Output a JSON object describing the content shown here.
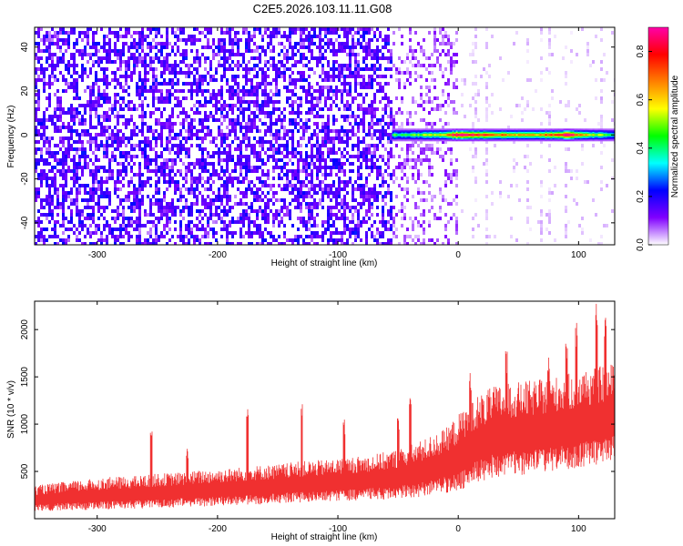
{
  "chart_data": [
    {
      "type": "heatmap",
      "title": "C2E5.2026.103.11.11.G08",
      "xlabel": "Height of straight line (km)",
      "ylabel": "Frequency (Hz)",
      "xlim": [
        -352,
        130
      ],
      "ylim": [
        -50,
        49
      ],
      "x_ticks": [
        -300,
        -200,
        -100,
        0,
        100
      ],
      "x_tick_labels": [
        "-300",
        "-200",
        "-100",
        "0",
        "100"
      ],
      "y_ticks": [
        -40,
        -20,
        0,
        20,
        40
      ],
      "y_tick_labels": [
        "-40",
        "-20",
        "0",
        "20",
        "40"
      ],
      "colorbar": {
        "label": "Normalized spectral amplitude",
        "range": [
          0.0,
          0.9
        ],
        "ticks": [
          0.0,
          0.2,
          0.4,
          0.6,
          0.8
        ],
        "tick_labels": [
          "0.0",
          "0.2",
          "0.4",
          "0.6",
          "0.8"
        ],
        "colormap": [
          "#ffffff",
          "#8000ff",
          "#0000ff",
          "#00ffff",
          "#00ff00",
          "#ffff00",
          "#ff8000",
          "#ff0000",
          "#ff00aa"
        ]
      },
      "regions": [
        {
          "x_range": [
            -352,
            -55
          ],
          "description_level": 0.12,
          "pattern": "dense speckle"
        },
        {
          "x_range": [
            -55,
            0
          ],
          "description_level": 0.06,
          "pattern": "fading speckle"
        },
        {
          "x_range": [
            0,
            130
          ],
          "description_level": 0.02,
          "pattern": "sparse vertical streaks"
        }
      ],
      "carrier_band": {
        "x_range": [
          -55,
          130
        ],
        "frequency_hz": 0,
        "peaks": [
          {
            "x": -52,
            "value": 0.35
          },
          {
            "x": -30,
            "value": 0.45
          },
          {
            "x": -15,
            "value": 0.55
          },
          {
            "x": 0,
            "value": 0.9
          },
          {
            "x": 20,
            "value": 0.75
          },
          {
            "x": 40,
            "value": 0.6
          },
          {
            "x": 60,
            "value": 0.55
          },
          {
            "x": 90,
            "value": 0.85
          },
          {
            "x": 110,
            "value": 0.5
          },
          {
            "x": 128,
            "value": 0.4
          }
        ]
      }
    },
    {
      "type": "line",
      "title": "",
      "xlabel": "Height of straight line (km)",
      "ylabel": "SNR (10 * v/v)",
      "xlim": [
        -352,
        130
      ],
      "ylim": [
        0,
        2300
      ],
      "x_ticks": [
        -300,
        -200,
        -100,
        0,
        100
      ],
      "x_tick_labels": [
        "-300",
        "-200",
        "-100",
        "0",
        "100"
      ],
      "y_ticks": [
        500,
        1000,
        1500,
        2000
      ],
      "y_tick_labels": [
        "500",
        "1000",
        "1500",
        "2000"
      ],
      "series": [
        {
          "color": "#f03030",
          "x": [
            -350,
            -330,
            -310,
            -290,
            -270,
            -250,
            -230,
            -210,
            -190,
            -170,
            -150,
            -130,
            -110,
            -90,
            -70,
            -50,
            -30,
            -10,
            0,
            10,
            30,
            50,
            70,
            90,
            110,
            128
          ],
          "mean": [
            210,
            230,
            245,
            260,
            270,
            285,
            300,
            315,
            330,
            345,
            360,
            380,
            395,
            410,
            430,
            460,
            520,
            600,
            680,
            780,
            900,
            930,
            960,
            1000,
            1050,
            1100
          ],
          "spread": [
            120,
            130,
            140,
            150,
            150,
            160,
            160,
            170,
            170,
            180,
            180,
            190,
            190,
            200,
            210,
            230,
            260,
            300,
            350,
            400,
            420,
            430,
            430,
            440,
            450,
            450
          ],
          "spikes": [
            {
              "x": -255,
              "value": 1000
            },
            {
              "x": -225,
              "value": 750
            },
            {
              "x": -175,
              "value": 1200
            },
            {
              "x": -130,
              "value": 1250
            },
            {
              "x": -95,
              "value": 1050
            },
            {
              "x": -50,
              "value": 1100
            },
            {
              "x": -40,
              "value": 1300
            },
            {
              "x": 10,
              "value": 1550
            },
            {
              "x": 40,
              "value": 1780
            },
            {
              "x": 75,
              "value": 1750
            },
            {
              "x": 90,
              "value": 1900
            },
            {
              "x": 98,
              "value": 2100
            },
            {
              "x": 115,
              "value": 2280
            },
            {
              "x": 122,
              "value": 2150
            }
          ]
        }
      ]
    }
  ]
}
